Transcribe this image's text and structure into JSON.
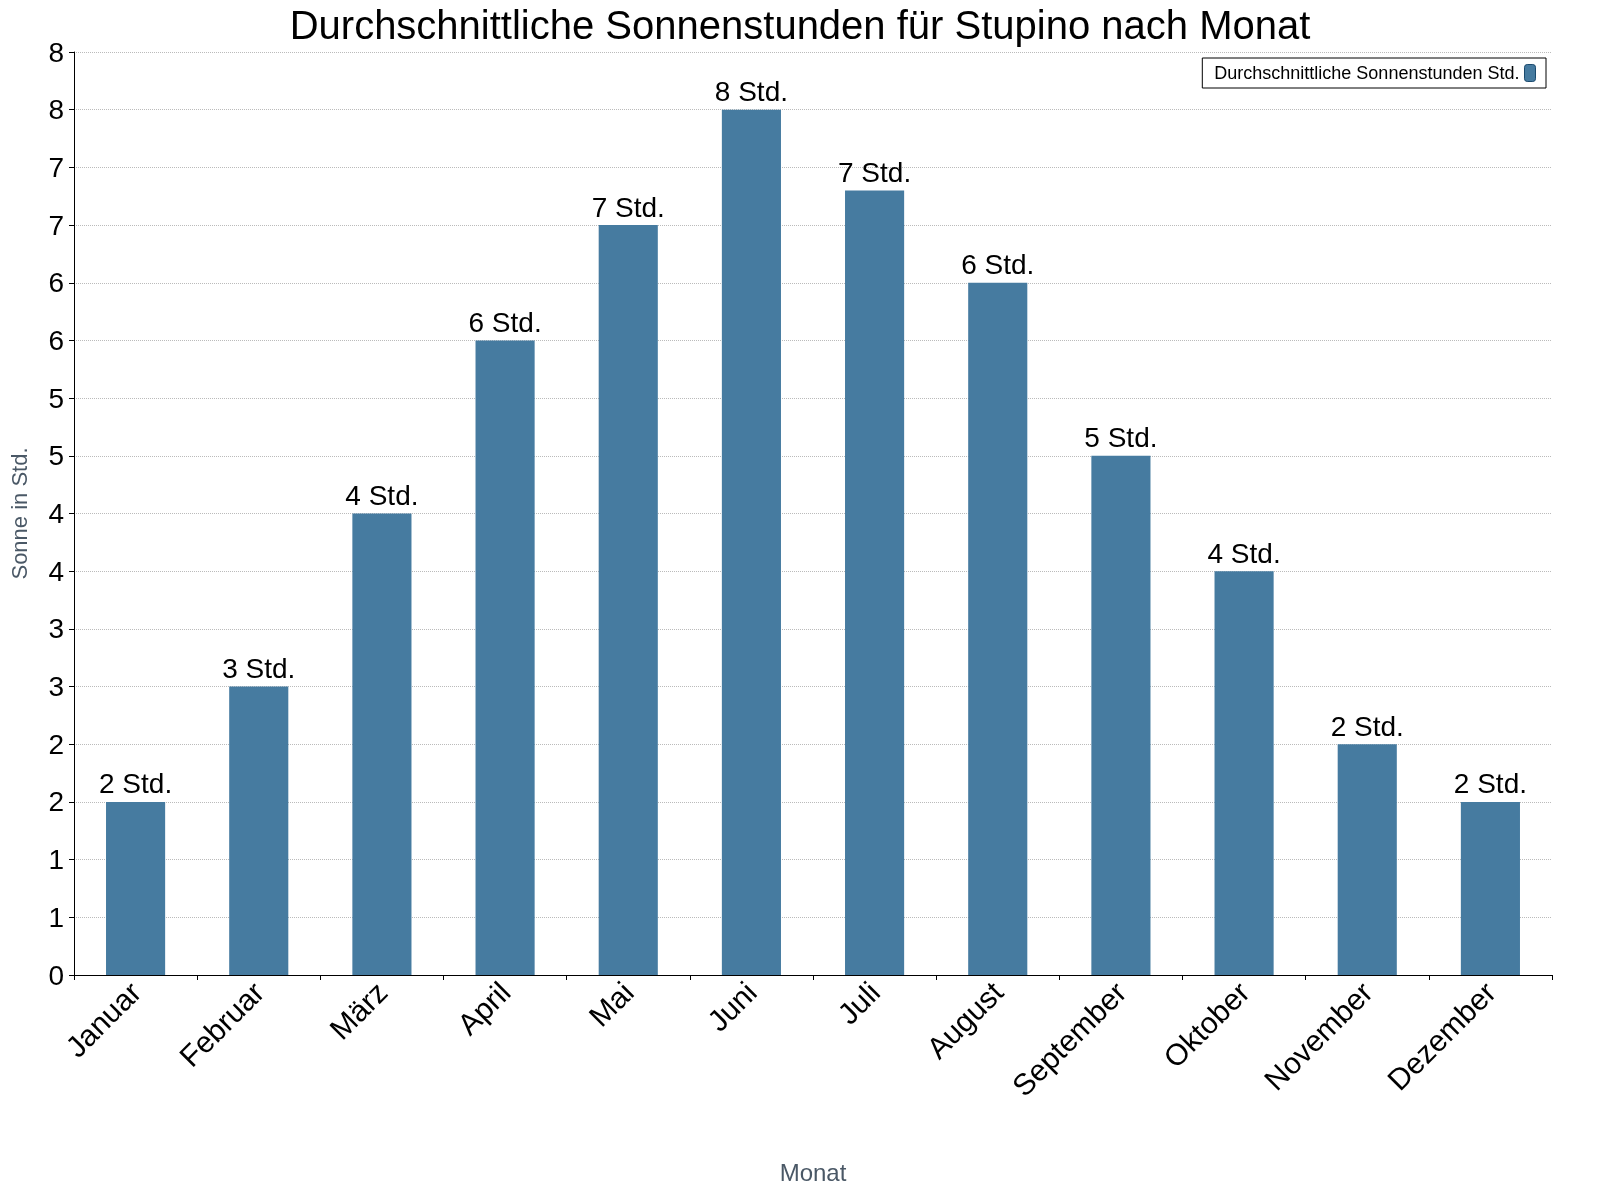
{
  "chart_data": {
    "type": "bar",
    "title": "Durchschnittliche Sonnenstunden für Stupino nach Monat",
    "xlabel": "Monat",
    "ylabel": "Sonne in Std.",
    "categories": [
      "Januar",
      "Februar",
      "März",
      "April",
      "Mai",
      "Juni",
      "Juli",
      "August",
      "September",
      "Oktober",
      "November",
      "Dezember"
    ],
    "series": [
      {
        "name": "Durchschnittliche Sonnenstunden Std.",
        "color": "#467ba0",
        "values": [
          1.5,
          2.5,
          4.0,
          5.5,
          6.5,
          7.5,
          6.8,
          6.0,
          4.5,
          3.5,
          2.0,
          1.5
        ],
        "value_labels": [
          "2 Std.",
          "3 Std.",
          "4 Std.",
          "6 Std.",
          "7 Std.",
          "8 Std.",
          "7 Std.",
          "6 Std.",
          "5 Std.",
          "4 Std.",
          "2 Std.",
          "2 Std."
        ]
      }
    ],
    "ylim": [
      0,
      8
    ],
    "yticks": [
      0,
      {
        "value": 0.5,
        "label": "1"
      },
      1,
      {
        "value": 1.5,
        "label": "2"
      },
      2,
      {
        "value": 2.5,
        "label": "3"
      },
      3,
      {
        "value": 3.5,
        "label": "4"
      },
      4,
      {
        "value": 4.5,
        "label": "5"
      },
      5,
      {
        "value": 5.5,
        "label": "6"
      },
      6,
      {
        "value": 6.5,
        "label": "7"
      },
      7,
      {
        "value": 7.5,
        "label": "8"
      },
      8
    ],
    "grid": "y",
    "legend": "top right"
  }
}
